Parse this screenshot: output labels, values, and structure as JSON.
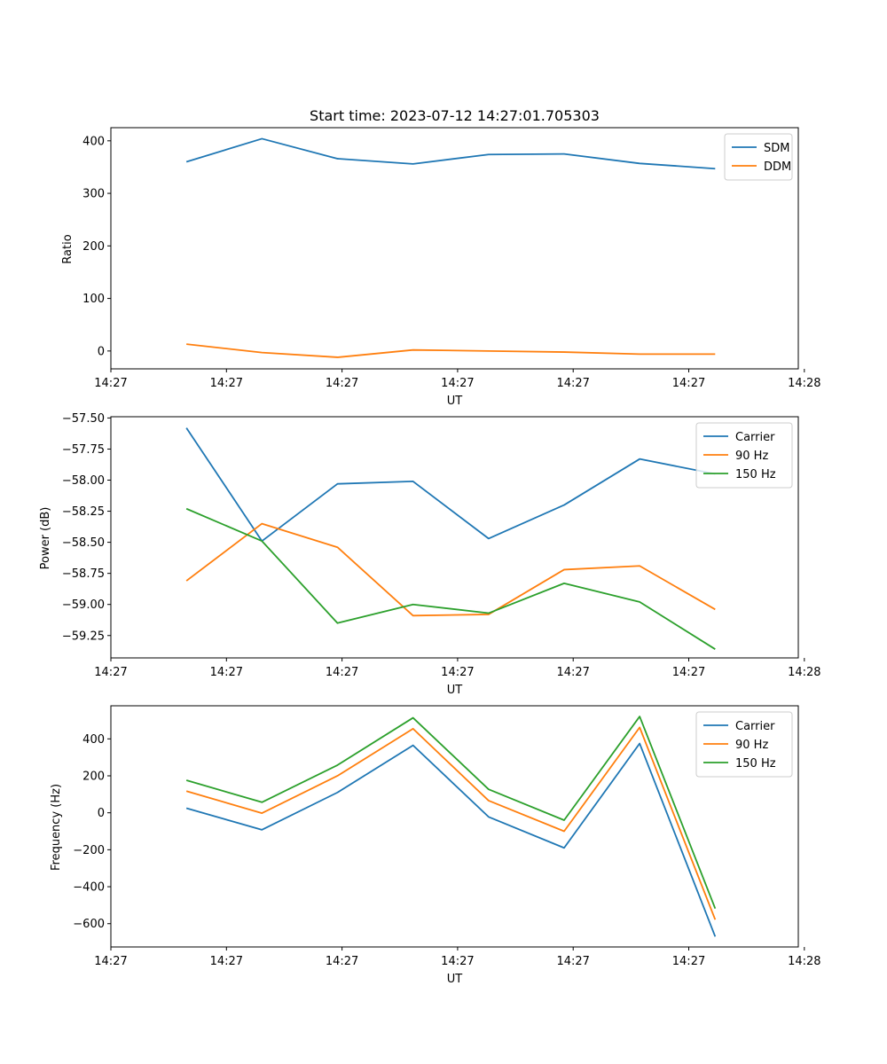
{
  "chart_data": [
    {
      "type": "line",
      "title": "Start time: 2023-07-12 14:27:01.705303",
      "xlabel": "UT",
      "ylabel": "Ratio",
      "xlim": [
        0,
        9.1
      ],
      "ylim": [
        -34,
        425
      ],
      "x": [
        1,
        2,
        3,
        4,
        5,
        6,
        7,
        8
      ],
      "x_ticks": [
        0,
        1.53,
        3.06,
        4.59,
        6.12,
        7.65,
        9.18
      ],
      "x_tick_labels": [
        "14:27",
        "14:27",
        "14:27",
        "14:27",
        "14:27",
        "14:27",
        "14:28"
      ],
      "y_ticks": [
        0,
        100,
        200,
        300,
        400
      ],
      "y_tick_labels": [
        "0",
        "100",
        "200",
        "300",
        "400"
      ],
      "legend_position": "top-right",
      "series": [
        {
          "name": "SDM",
          "color": "#1f77b4",
          "values": [
            360,
            404,
            366,
            356,
            374,
            375,
            357,
            347
          ]
        },
        {
          "name": "DDM",
          "color": "#ff7f0e",
          "values": [
            13,
            -3,
            -12,
            2,
            0,
            -2,
            -6,
            -6
          ]
        }
      ]
    },
    {
      "type": "line",
      "title": "",
      "xlabel": "UT",
      "ylabel": "Power (dB)",
      "xlim": [
        0,
        9.1
      ],
      "ylim": [
        -59.43,
        -57.49
      ],
      "x": [
        1,
        2,
        3,
        4,
        5,
        6,
        7,
        8
      ],
      "x_ticks": [
        0,
        1.53,
        3.06,
        4.59,
        6.12,
        7.65,
        9.18
      ],
      "x_tick_labels": [
        "14:27",
        "14:27",
        "14:27",
        "14:27",
        "14:27",
        "14:27",
        "14:28"
      ],
      "y_ticks": [
        -59.25,
        -59.0,
        -58.75,
        -58.5,
        -58.25,
        -58.0,
        -57.75,
        -57.5
      ],
      "y_tick_labels": [
        "−59.25",
        "−59.00",
        "−58.75",
        "−58.50",
        "−58.25",
        "−58.00",
        "−57.75",
        "−57.50"
      ],
      "legend_position": "top-right",
      "series": [
        {
          "name": "Carrier",
          "color": "#1f77b4",
          "values": [
            -57.58,
            -58.49,
            -58.03,
            -58.01,
            -58.47,
            -58.2,
            -57.83,
            -57.95
          ]
        },
        {
          "name": "90 Hz",
          "color": "#ff7f0e",
          "values": [
            -58.81,
            -58.35,
            -58.54,
            -59.09,
            -59.08,
            -58.72,
            -58.69,
            -59.04
          ]
        },
        {
          "name": "150 Hz",
          "color": "#2ca02c",
          "values": [
            -58.23,
            -58.49,
            -59.15,
            -59.0,
            -59.07,
            -58.83,
            -58.98,
            -59.36
          ]
        }
      ]
    },
    {
      "type": "line",
      "title": "",
      "xlabel": "UT",
      "ylabel": "Frequency (Hz)",
      "xlim": [
        0,
        9.1
      ],
      "ylim": [
        -726,
        579
      ],
      "x": [
        1,
        2,
        3,
        4,
        5,
        6,
        7,
        8
      ],
      "x_ticks": [
        0,
        1.53,
        3.06,
        4.59,
        6.12,
        7.65,
        9.18
      ],
      "x_tick_labels": [
        "14:27",
        "14:27",
        "14:27",
        "14:27",
        "14:27",
        "14:27",
        "14:28"
      ],
      "y_ticks": [
        -600,
        -400,
        -200,
        0,
        200,
        400
      ],
      "y_tick_labels": [
        "−600",
        "−400",
        "−200",
        "0",
        "200",
        "400"
      ],
      "legend_position": "top-right",
      "series": [
        {
          "name": "Carrier",
          "color": "#1f77b4",
          "values": [
            25,
            -92,
            110,
            365,
            -22,
            -190,
            375,
            -670
          ]
        },
        {
          "name": "90 Hz",
          "color": "#ff7f0e",
          "values": [
            117,
            -2,
            200,
            455,
            66,
            -100,
            462,
            -578
          ]
        },
        {
          "name": "150 Hz",
          "color": "#2ca02c",
          "values": [
            176,
            57,
            258,
            514,
            127,
            -40,
            521,
            -518
          ]
        }
      ]
    }
  ]
}
